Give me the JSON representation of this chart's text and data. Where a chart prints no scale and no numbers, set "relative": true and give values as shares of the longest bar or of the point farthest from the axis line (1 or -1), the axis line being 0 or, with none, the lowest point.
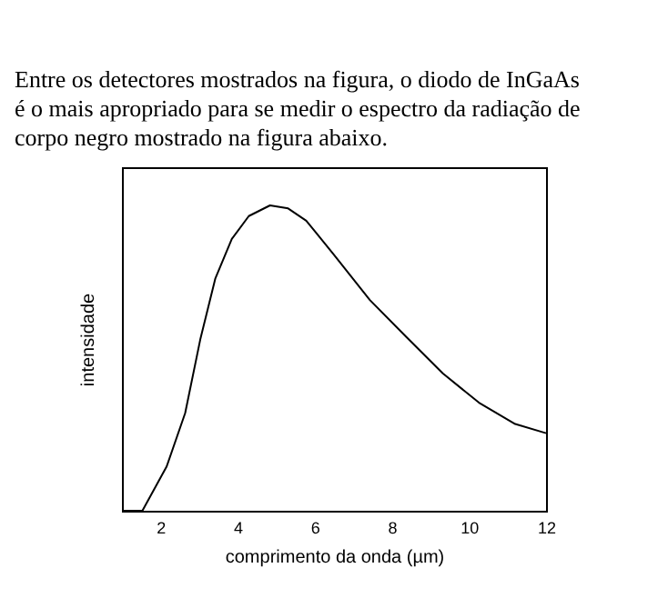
{
  "chart_data": {
    "type": "line",
    "relative": true,
    "xlabel": "comprimento da onda (µm)",
    "ylabel": "intensidade",
    "annotations": [
      "Entre os detectores mostrados na figura, o diodo de InGaAs",
      "é o mais apropriado para se medir o espectro da radiação de",
      "corpo negro mostrado na figura abaixo."
    ],
    "xlim": [
      1,
      12
    ],
    "xticks": [
      2,
      4,
      6,
      8,
      10,
      12
    ],
    "grid": false,
    "color": "#000000",
    "x": [
      1.04,
      1.53,
      2.16,
      2.64,
      3.03,
      3.42,
      3.85,
      4.29,
      4.84,
      5.31,
      5.78,
      6.49,
      7.43,
      8.37,
      9.32,
      10.26,
      11.2,
      12
    ],
    "values": [
      0,
      0,
      0.145,
      0.32,
      0.56,
      0.76,
      0.89,
      0.965,
      1.0,
      0.99,
      0.95,
      0.84,
      0.69,
      0.57,
      0.45,
      0.354,
      0.284,
      0.254
    ]
  }
}
